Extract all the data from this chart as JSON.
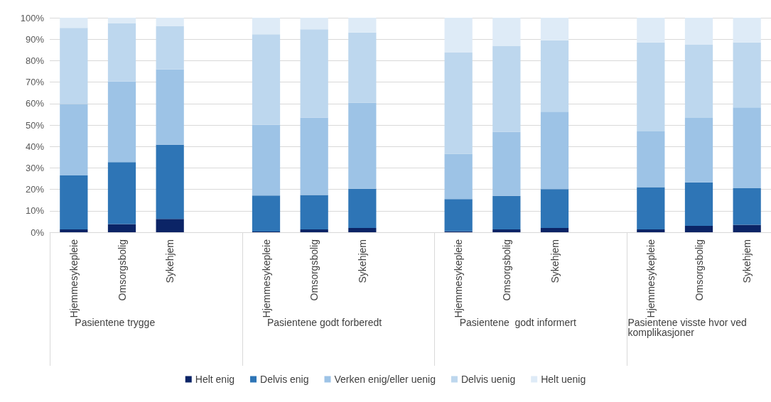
{
  "chart_data": {
    "type": "bar",
    "stacked": true,
    "categories": [
      "Hjemmesykepleie",
      "Omsorgsbolig",
      "Sykehjem",
      null,
      "Hjemmesykepleie",
      "Omsorgsbolig",
      "Sykehjem",
      null,
      "Hjemmesykepleie",
      "Omsorgsbolig",
      "Sykehjem",
      null,
      "Hjemmesykepleie",
      "Omsorgsbolig",
      "Sykehjem"
    ],
    "annotations": [
      "Pasientene trygge",
      "Pasientene godt forberedt",
      "Pasientene  godt informert",
      "Pasientene visste hvor ved komplikasjoner"
    ],
    "series": [
      {
        "name": "Helt enig",
        "color": "#0b2466",
        "values": [
          1.3,
          3.8,
          6.2,
          null,
          0.3,
          1.3,
          2.0,
          null,
          0.4,
          1.3,
          2.0,
          null,
          1.3,
          3.0,
          3.5
        ]
      },
      {
        "name": "Delvis enig",
        "color": "#2e75b6",
        "values": [
          25.2,
          28.9,
          34.6,
          null,
          16.8,
          16.1,
          18.3,
          null,
          15.1,
          15.7,
          18.1,
          null,
          19.7,
          20.3,
          17.0
        ]
      },
      {
        "name": "Verken enig/eller uenig",
        "color": "#9dc3e6",
        "values": [
          33.3,
          37.6,
          35.1,
          null,
          33.1,
          36.1,
          40.1,
          null,
          21.1,
          29.8,
          36.1,
          null,
          26.0,
          30.0,
          37.7
        ]
      },
      {
        "name": "Delvis uenig",
        "color": "#bdd7ee",
        "values": [
          35.5,
          27.2,
          20.3,
          null,
          42.1,
          41.1,
          32.7,
          null,
          47.2,
          40.1,
          33.3,
          null,
          41.5,
          34.1,
          30.3
        ]
      },
      {
        "name": "Helt uenig",
        "color": "#deebf7",
        "values": [
          4.7,
          2.5,
          3.8,
          null,
          7.7,
          5.4,
          6.9,
          null,
          16.2,
          13.1,
          10.5,
          null,
          11.5,
          12.6,
          11.5
        ]
      }
    ],
    "ylim": [
      0,
      100
    ],
    "yticks": [
      {
        "value": 0,
        "label": "0%"
      },
      {
        "value": 10,
        "label": "10%"
      },
      {
        "value": 20,
        "label": "20%"
      },
      {
        "value": 30,
        "label": "30%"
      },
      {
        "value": 40,
        "label": "40%"
      },
      {
        "value": 50,
        "label": "50%"
      },
      {
        "value": 60,
        "label": "60%"
      },
      {
        "value": 70,
        "label": "70%"
      },
      {
        "value": 80,
        "label": "80%"
      },
      {
        "value": 90,
        "label": "90%"
      },
      {
        "value": 100,
        "label": "100%"
      }
    ],
    "grid": "y",
    "legend": "bottom"
  }
}
